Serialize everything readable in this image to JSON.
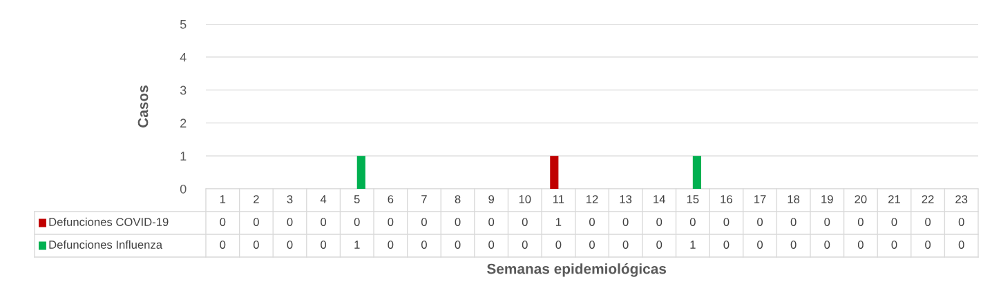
{
  "chart_data": {
    "type": "bar",
    "xlabel": "Semanas epidemiológicas",
    "ylabel": "Casos",
    "categories": [
      "1",
      "2",
      "3",
      "4",
      "5",
      "6",
      "7",
      "8",
      "9",
      "10",
      "11",
      "12",
      "13",
      "14",
      "15",
      "16",
      "17",
      "18",
      "19",
      "20",
      "21",
      "22",
      "23"
    ],
    "series": [
      {
        "name": "Defunciones COVID-19",
        "color": "#c00000",
        "values": [
          0,
          0,
          0,
          0,
          0,
          0,
          0,
          0,
          0,
          0,
          1,
          0,
          0,
          0,
          0,
          0,
          0,
          0,
          0,
          0,
          0,
          0,
          0
        ]
      },
      {
        "name": "Defunciones Influenza",
        "color": "#00b050",
        "values": [
          0,
          0,
          0,
          0,
          1,
          0,
          0,
          0,
          0,
          0,
          0,
          0,
          0,
          0,
          1,
          0,
          0,
          0,
          0,
          0,
          0,
          0,
          0
        ]
      }
    ],
    "ylim": [
      0,
      5
    ],
    "yticks": [
      0,
      1,
      2,
      3,
      4,
      5
    ],
    "grid": "y",
    "data_labels": true,
    "legend": "bottom left"
  }
}
